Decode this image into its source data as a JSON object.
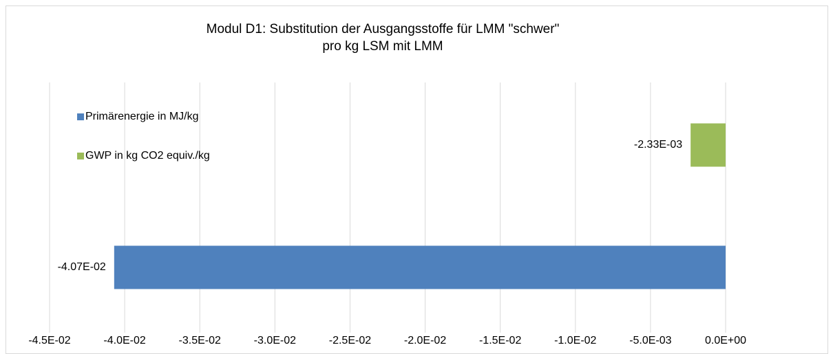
{
  "chart_data": {
    "type": "bar",
    "orientation": "horizontal",
    "title": "Modul D1: Substitution der Ausgangsstoffe für LMM \"schwer\"",
    "subtitle": "pro kg LSM mit LMM",
    "categories": [
      null
    ],
    "series": [
      {
        "name": "Primärenergie in MJ/kg",
        "color": "#4f81bd",
        "values": [
          -0.0407
        ],
        "value_labels": [
          "-4.07E-02"
        ]
      },
      {
        "name": "GWP in kg CO2 equiv./kg",
        "color": "#9bbb59",
        "values": [
          -0.00233
        ],
        "value_labels": [
          "-2.33E-03"
        ]
      }
    ],
    "xlim": [
      -0.045,
      0
    ],
    "xticks": [
      {
        "value": -0.045,
        "label": "-4.5E-02"
      },
      {
        "value": -0.04,
        "label": "-4.0E-02"
      },
      {
        "value": -0.035,
        "label": "-3.5E-02"
      },
      {
        "value": -0.03,
        "label": "-3.0E-02"
      },
      {
        "value": -0.025,
        "label": "-2.5E-02"
      },
      {
        "value": -0.02,
        "label": "-2.0E-02"
      },
      {
        "value": -0.015,
        "label": "-1.5E-02"
      },
      {
        "value": -0.01,
        "label": "-1.0E-02"
      },
      {
        "value": -0.005,
        "label": "-5.0E-03"
      },
      {
        "value": 0,
        "label": "0.0E+00"
      }
    ],
    "grid": true,
    "legend": "upper left"
  }
}
